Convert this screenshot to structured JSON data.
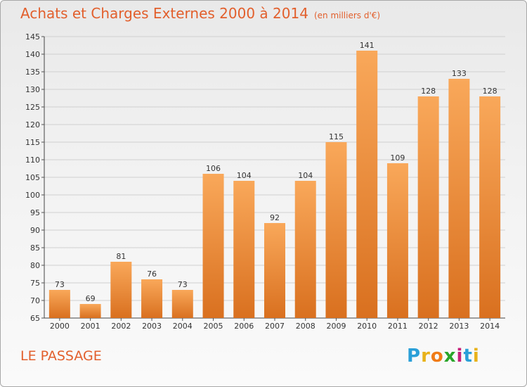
{
  "title": "Achats et Charges Externes 2000 à 2014",
  "unit_label": "(en milliers d'€)",
  "commune": "LE PASSAGE",
  "logo": {
    "letters": [
      "P",
      "r",
      "o",
      "x",
      "i",
      "t",
      "i"
    ],
    "colors": [
      "#2a9fd8",
      "#e8b21a",
      "#f07b16",
      "#2aa52a",
      "#c6207a",
      "#2a9fd8",
      "#e8b21a"
    ]
  },
  "colors": {
    "title": "#e25f2c",
    "bar_light": "#f9a85a",
    "bar_dark": "#d9701f",
    "grid": "#d0d0d0"
  },
  "chart_data": {
    "type": "bar",
    "title": "Achats et Charges Externes 2000 à 2014",
    "subtitle": "(en milliers d'€)",
    "categories": [
      "2000",
      "2001",
      "2002",
      "2003",
      "2004",
      "2005",
      "2006",
      "2007",
      "2008",
      "2009",
      "2010",
      "2011",
      "2012",
      "2013",
      "2014"
    ],
    "values": [
      73,
      69,
      81,
      76,
      73,
      106,
      104,
      92,
      104,
      115,
      141,
      109,
      128,
      133,
      128
    ],
    "ylim": [
      65,
      145
    ],
    "yticks": [
      65,
      70,
      75,
      80,
      85,
      90,
      95,
      100,
      105,
      110,
      115,
      120,
      125,
      130,
      135,
      140,
      145
    ],
    "grid": true,
    "legend": "none"
  }
}
